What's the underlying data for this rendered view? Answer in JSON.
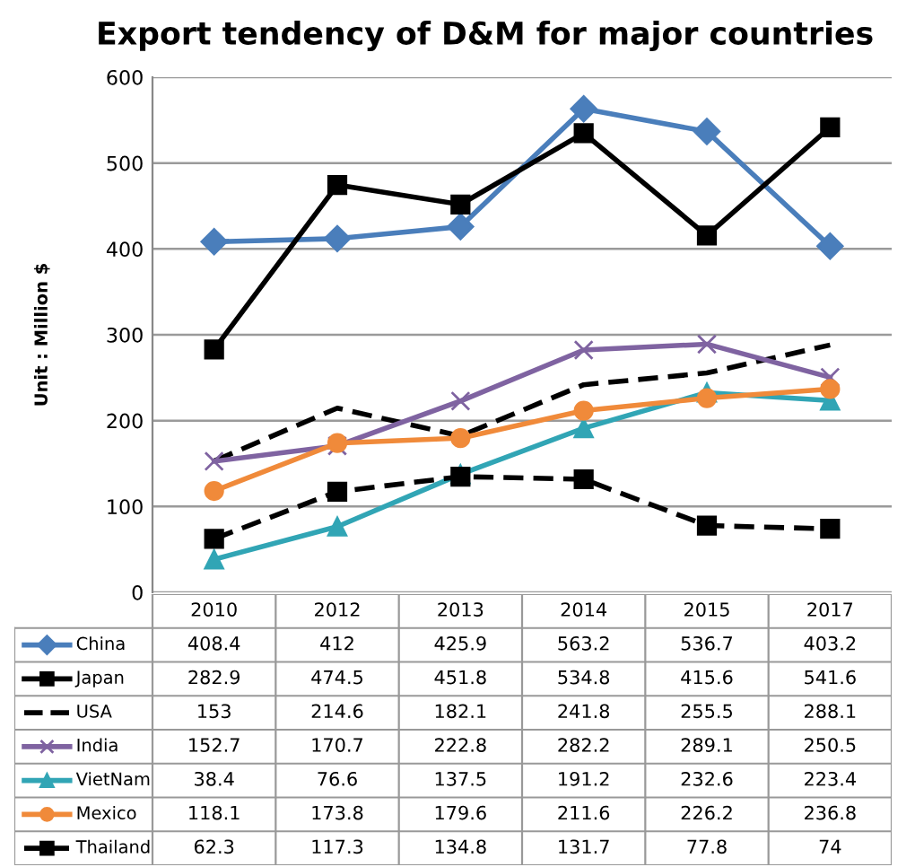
{
  "chart_data": {
    "type": "line",
    "title": "Export tendency of D&M for major countries",
    "ylabel": "Unit : Million $",
    "categories": [
      "2010",
      "2012",
      "2013",
      "2014",
      "2015",
      "2017"
    ],
    "ylim": [
      0,
      600
    ],
    "yticks": [
      0,
      100,
      200,
      300,
      400,
      500,
      600
    ],
    "grid": "y",
    "data_labels": true,
    "legend": "bottom",
    "series": [
      {
        "name": "China",
        "color": "#4a7ebb",
        "marker": "diamond",
        "line_style": "solid",
        "values": [
          408.4,
          412,
          425.9,
          563.2,
          536.7,
          403.2
        ]
      },
      {
        "name": "Japan",
        "color": "#000000",
        "marker": "square",
        "line_style": "solid",
        "values": [
          282.9,
          474.5,
          451.8,
          534.8,
          415.6,
          541.6
        ]
      },
      {
        "name": "USA",
        "color": "#000000",
        "marker": "none",
        "line_style": "dashed",
        "values": [
          153,
          214.6,
          182.1,
          241.8,
          255.5,
          288.1
        ]
      },
      {
        "name": "India",
        "color": "#7f63a1",
        "marker": "cross",
        "line_style": "solid",
        "values": [
          152.7,
          170.7,
          222.8,
          282.2,
          289.1,
          250.5
        ]
      },
      {
        "name": "VietNam",
        "color": "#31a5b5",
        "marker": "triangle",
        "line_style": "solid",
        "values": [
          38.4,
          76.6,
          137.5,
          191.2,
          232.6,
          223.4
        ]
      },
      {
        "name": "Mexico",
        "color": "#f08a3a",
        "marker": "circle",
        "line_style": "solid",
        "values": [
          118.1,
          173.8,
          179.6,
          211.6,
          226.2,
          236.8
        ]
      },
      {
        "name": "Thailand",
        "color": "#000000",
        "marker": "square",
        "line_style": "dashed",
        "values": [
          62.3,
          117.3,
          134.8,
          131.7,
          77.8,
          74
        ]
      }
    ]
  }
}
